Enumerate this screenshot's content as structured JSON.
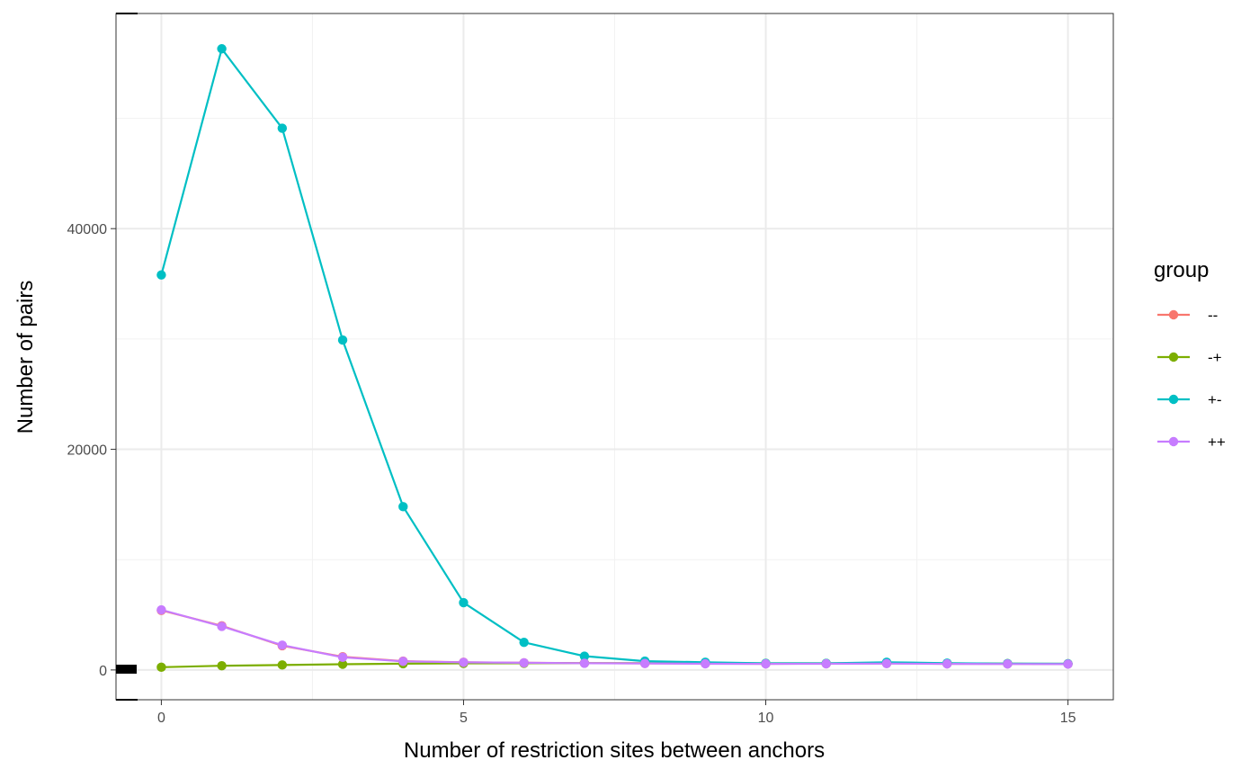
{
  "chart_data": {
    "type": "line",
    "title": "",
    "xlabel": "Number of restriction sites between anchors",
    "ylabel": "Number of pairs",
    "xlim": [
      -0.75,
      15.75
    ],
    "ylim": [
      -2700,
      59500
    ],
    "x_ticks": [
      0,
      5,
      10,
      15
    ],
    "x_tick_labels": [
      "0",
      "5",
      "10",
      "15"
    ],
    "y_ticks": [
      0,
      20000,
      40000
    ],
    "y_tick_labels": [
      "0",
      "20000",
      "40000"
    ],
    "grid": true,
    "legend": {
      "title": "group",
      "position": "right"
    },
    "x": [
      0,
      1,
      2,
      3,
      4,
      5,
      6,
      7,
      8,
      9,
      10,
      11,
      12,
      13,
      14,
      15
    ],
    "series": [
      {
        "name": "--",
        "color": "#F8766D",
        "values": [
          5400,
          4000,
          2200,
          1200,
          800,
          700,
          650,
          620,
          600,
          580,
          560,
          570,
          600,
          560,
          560,
          540
        ]
      },
      {
        "name": "-+",
        "color": "#7CAE00",
        "values": [
          250,
          380,
          450,
          520,
          570,
          600,
          610,
          620,
          620,
          610,
          600,
          600,
          610,
          600,
          570,
          560
        ]
      },
      {
        "name": "+-",
        "color": "#00BFC4",
        "values": [
          35800,
          56300,
          49100,
          29900,
          14800,
          6100,
          2500,
          1250,
          800,
          700,
          600,
          600,
          700,
          620,
          580,
          560
        ]
      },
      {
        "name": "++",
        "color": "#C77CFF",
        "values": [
          5450,
          3950,
          2250,
          1150,
          780,
          690,
          650,
          610,
          590,
          560,
          550,
          560,
          580,
          550,
          540,
          530
        ]
      }
    ]
  }
}
